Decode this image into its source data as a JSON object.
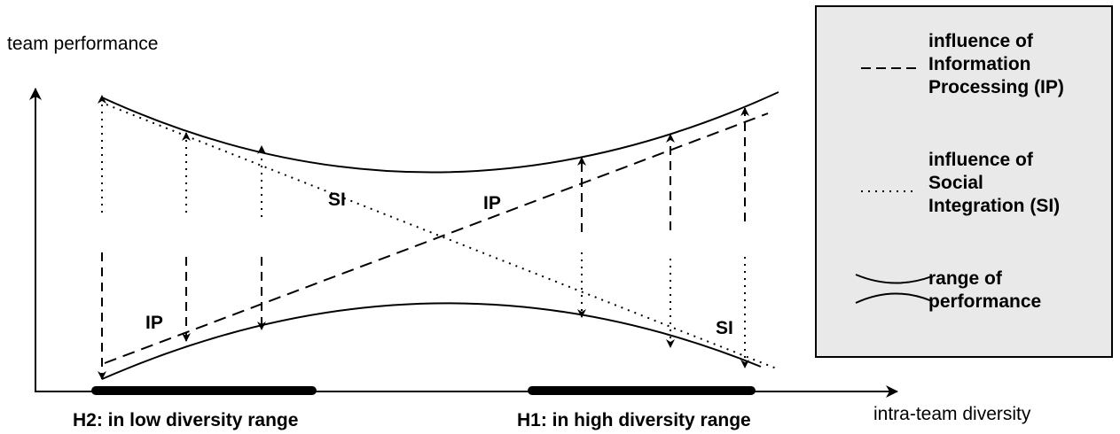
{
  "axes": {
    "y_label": "team performance",
    "x_label": "intra-team diversity"
  },
  "hypotheses": {
    "h2": "H2: in low diversity range",
    "h1": "H1: in high diversity range"
  },
  "line_labels": {
    "si_upper": "SI",
    "ip_upper": "IP",
    "ip_lower": "IP",
    "si_lower": "SI"
  },
  "legend": {
    "ip": {
      "line1": "influence of",
      "line2": "Information",
      "line3": "Processing (IP)"
    },
    "si": {
      "line1": "influence of",
      "line2": "Social",
      "line3": "Integration (SI)"
    },
    "range": {
      "line1": "range of",
      "line2": "performance"
    }
  }
}
